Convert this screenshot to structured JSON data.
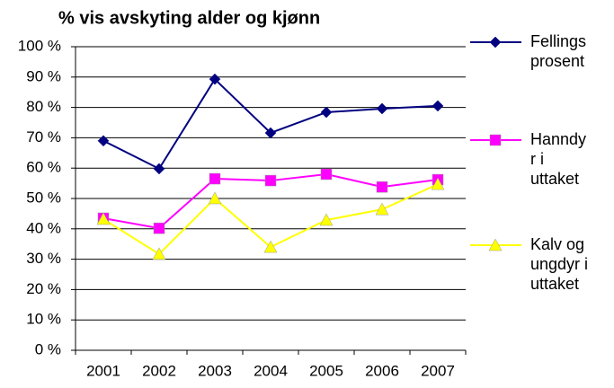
{
  "chart_data": {
    "type": "line",
    "title": "% vis avskyting alder og kjønn",
    "categories": [
      "2001",
      "2002",
      "2003",
      "2004",
      "2005",
      "2006",
      "2007"
    ],
    "series": [
      {
        "name": "Fellingsprosent",
        "color": "#000080",
        "marker": "diamond",
        "values": [
          69,
          59.8,
          89.3,
          71.6,
          78.4,
          79.6,
          80.5
        ]
      },
      {
        "name": "Hanndyr i uttaket",
        "color": "#ff00ff",
        "marker": "square",
        "values": [
          43.5,
          40.2,
          56.5,
          55.9,
          58,
          53.8,
          56.2
        ]
      },
      {
        "name": "Kalv og ungdyr i uttaket",
        "color": "#ffff00",
        "marker": "triangle",
        "values": [
          43.2,
          31.7,
          50,
          34,
          42.9,
          46.4,
          54.7
        ]
      }
    ],
    "ylim": [
      0,
      100
    ],
    "yticks": [
      {
        "value": 0,
        "label": "0 %"
      },
      {
        "value": 10,
        "label": "10 %"
      },
      {
        "value": 20,
        "label": "20 %"
      },
      {
        "value": 30,
        "label": "30 %"
      },
      {
        "value": 40,
        "label": "40 %"
      },
      {
        "value": 50,
        "label": "50 %"
      },
      {
        "value": 60,
        "label": "60 %"
      },
      {
        "value": 70,
        "label": "70 %"
      },
      {
        "value": 80,
        "label": "80 %"
      },
      {
        "value": 90,
        "label": "90 %"
      },
      {
        "value": 100,
        "label": "100 %"
      }
    ],
    "grid": true,
    "legend": "right"
  }
}
